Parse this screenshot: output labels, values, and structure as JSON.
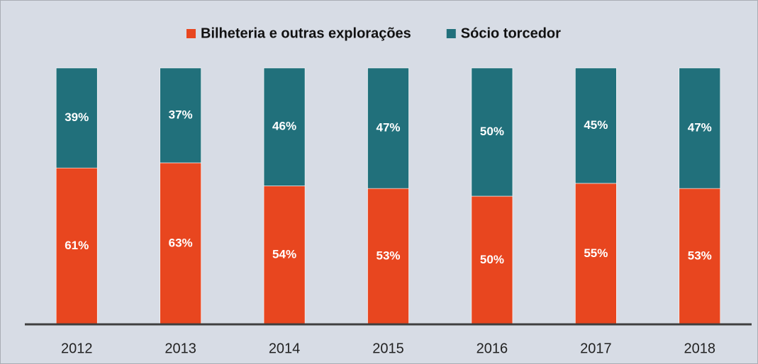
{
  "chart_data": {
    "type": "stacked-bar",
    "categories": [
      "2012",
      "2013",
      "2014",
      "2015",
      "2016",
      "2017",
      "2018"
    ],
    "series": [
      {
        "name": "Bilheteria e outras explorações",
        "color": "#e8461f",
        "values": [
          61,
          63,
          54,
          53,
          50,
          55,
          53
        ],
        "value_labels": [
          "61%",
          "63%",
          "54%",
          "53%",
          "50%",
          "55%",
          "53%"
        ]
      },
      {
        "name": "Sócio torcedor",
        "color": "#21707b",
        "values": [
          39,
          37,
          46,
          47,
          50,
          45,
          47
        ],
        "value_labels": [
          "39%",
          "37%",
          "46%",
          "47%",
          "50%",
          "45%",
          "47%"
        ]
      }
    ],
    "ylim": [
      0,
      100
    ],
    "legend": "top"
  }
}
